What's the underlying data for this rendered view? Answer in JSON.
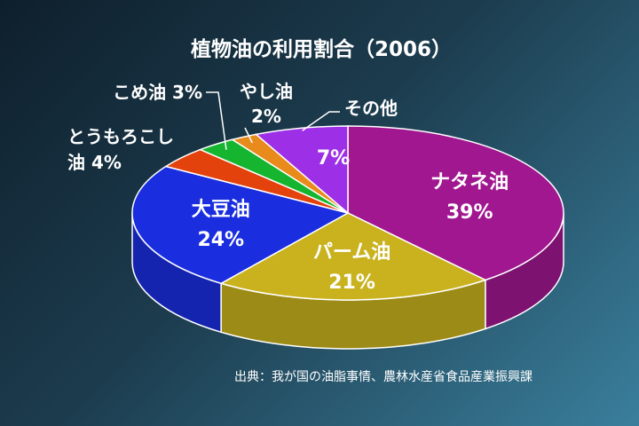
{
  "chart_data": {
    "type": "pie",
    "title": "植物油の利用割合（2006）",
    "source": "出典：我が国の油脂事情、農林水産省食品産業振興課",
    "slices": [
      {
        "label": "ナタネ油",
        "value": 39,
        "pct_label": "39%",
        "color": "#a0178f"
      },
      {
        "label": "パーム油",
        "value": 21,
        "pct_label": "21%",
        "color": "#c9b21e"
      },
      {
        "label": "大豆油",
        "value": 24,
        "pct_label": "24%",
        "color": "#1a2ee0"
      },
      {
        "label": "とうもろこし油",
        "value": 4,
        "pct_label": "4%",
        "color": "#e3420c",
        "label_line1": "とうもろこし",
        "label_line2": "油 4%"
      },
      {
        "label": "こめ油",
        "value": 3,
        "pct_label": "3%",
        "color": "#15b52f",
        "label_text": "こめ油 3%"
      },
      {
        "label": "やし油",
        "value": 2,
        "pct_label": "2%",
        "color": "#e88a1c",
        "label_line1": "やし油",
        "label_line2": "2%"
      },
      {
        "label": "その他",
        "value": 7,
        "pct_label": "7%",
        "color": "#9d30e6"
      }
    ]
  }
}
